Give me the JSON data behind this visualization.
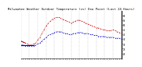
{
  "title": "Milwaukee Weather Outdoor Temperature (vs) Dew Point (Last 24 Hours)",
  "title_fontsize": 2.8,
  "background_color": "#ffffff",
  "grid_color": "#999999",
  "ylim": [
    15,
    65
  ],
  "x_temp": [
    0,
    1,
    2,
    3,
    4,
    5,
    6,
    7,
    8,
    9,
    10,
    11,
    12,
    13,
    14,
    15,
    16,
    17,
    18,
    19,
    20,
    21,
    22,
    23,
    24,
    25,
    26,
    27,
    28,
    29,
    30,
    31,
    32,
    33,
    34,
    35,
    36,
    37,
    38,
    39,
    40,
    41,
    42,
    43,
    44,
    45,
    46,
    47,
    48
  ],
  "y_temp": [
    33,
    32,
    31,
    30,
    29,
    29,
    30,
    31,
    34,
    37,
    41,
    45,
    49,
    52,
    54,
    56,
    57,
    58,
    58,
    57,
    56,
    55,
    54,
    53,
    52,
    53,
    54,
    55,
    55,
    54,
    53,
    52,
    51,
    50,
    49,
    48,
    47,
    47,
    46,
    45,
    45,
    44,
    44,
    44,
    45,
    44,
    43,
    42,
    41
  ],
  "y_dew": [
    29,
    29,
    28,
    28,
    28,
    28,
    28,
    29,
    30,
    31,
    33,
    35,
    37,
    39,
    40,
    41,
    42,
    43,
    43,
    43,
    42,
    41,
    41,
    40,
    40,
    41,
    41,
    42,
    42,
    42,
    41,
    41,
    41,
    40,
    40,
    39,
    39,
    38,
    38,
    38,
    38,
    37,
    37,
    37,
    37,
    36,
    36,
    36,
    35
  ],
  "temp_color": "#cc0000",
  "dew_color": "#0000cc",
  "solid_temp_end": 2,
  "solid_dew_end": 1,
  "dew_solid_line_y": 29,
  "x_tick_positions": [
    0,
    4,
    8,
    12,
    16,
    20,
    24,
    28,
    32,
    36,
    40,
    44,
    48
  ],
  "right_axis_ticks": [
    20,
    25,
    30,
    35,
    40,
    45,
    50,
    55,
    60
  ],
  "right_axis_labels": [
    "20",
    "25",
    "30",
    "35",
    "40",
    "45",
    "50",
    "55",
    "60"
  ],
  "xlabel_count": 49,
  "marker_size": 1.2
}
